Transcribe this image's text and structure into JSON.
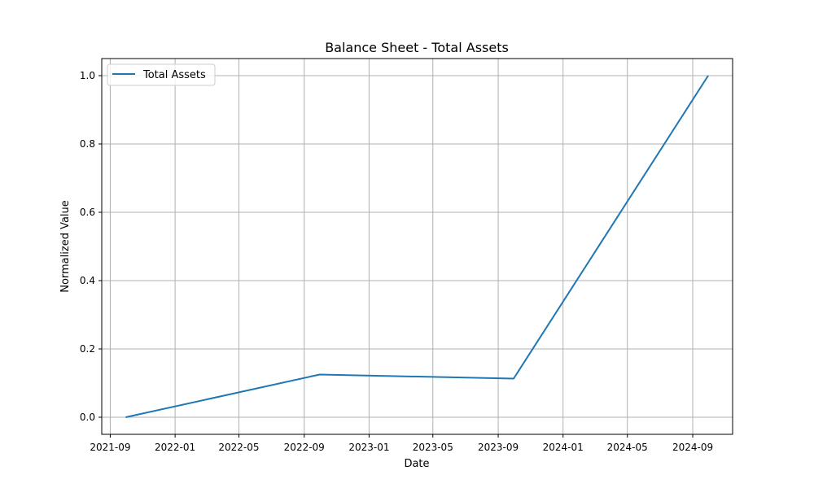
{
  "chart_data": {
    "type": "line",
    "title": "Balance Sheet - Total Assets",
    "xlabel": "Date",
    "ylabel": "Normalized Value",
    "x_axis_type": "date",
    "x_ticks": [
      "2021-09",
      "2022-01",
      "2022-05",
      "2022-09",
      "2023-01",
      "2023-05",
      "2023-09",
      "2024-01",
      "2024-05",
      "2024-09"
    ],
    "xlim": [
      "2021-08-16",
      "2024-11-15"
    ],
    "ylim": [
      -0.05,
      1.05
    ],
    "y_ticks": [
      "0.0",
      "0.2",
      "0.4",
      "0.6",
      "0.8",
      "1.0"
    ],
    "grid": true,
    "legend_position": "top-left",
    "series": [
      {
        "name": "Total Assets",
        "color": "#1f77b4",
        "x": [
          "2021-09-30",
          "2022-09-30",
          "2023-09-30",
          "2024-09-30"
        ],
        "y": [
          0.0,
          0.125,
          0.113,
          1.0
        ]
      }
    ]
  }
}
